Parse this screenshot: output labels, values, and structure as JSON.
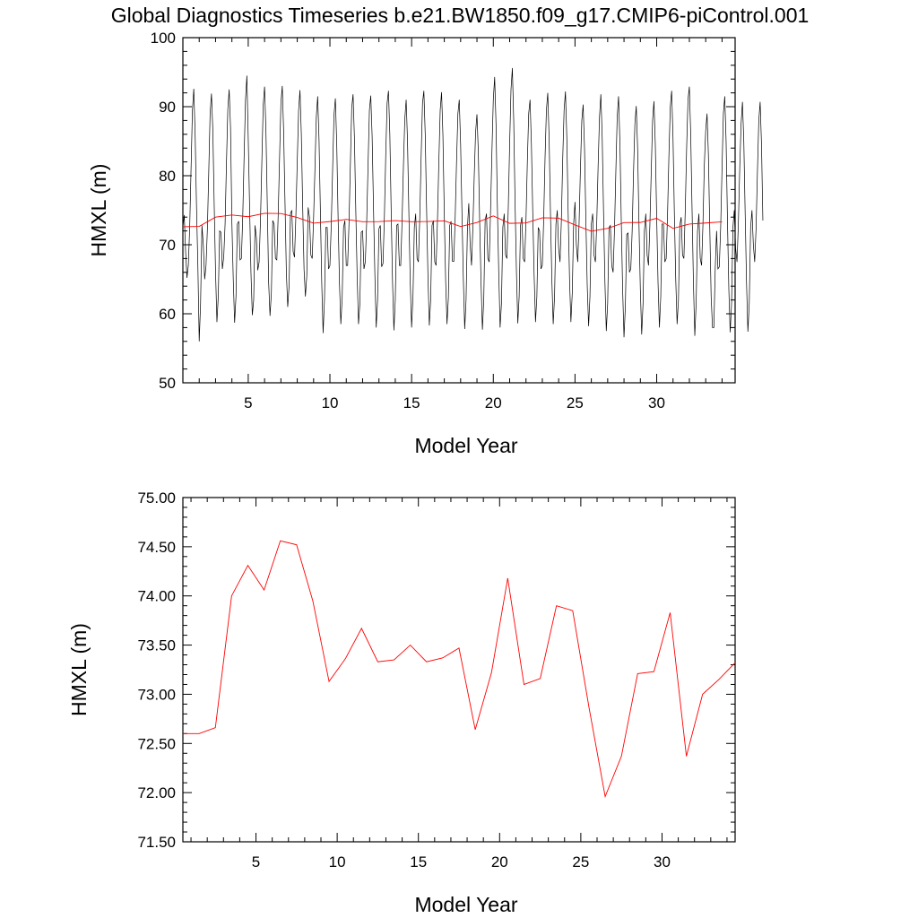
{
  "title": "Global Diagnostics Timeseries b.e21.BW1850.f09_g17.CMIP6-piControl.001",
  "colors": {
    "monthly": "#000000",
    "annual": "#ff0000",
    "axes": "#000000"
  },
  "chart_data": [
    {
      "type": "line",
      "xlabel": "Model Year",
      "ylabel": "HMXL (m)",
      "xlim": [
        1,
        34.8
      ],
      "ylim": [
        50,
        100
      ],
      "x_ticks": [
        5,
        10,
        15,
        20,
        25,
        30
      ],
      "x_tick_labels": [
        "5",
        "10",
        "15",
        "20",
        "25",
        "30"
      ],
      "y_ticks": [
        50,
        60,
        70,
        80,
        90,
        100
      ],
      "y_tick_labels": [
        "50",
        "60",
        "70",
        "80",
        "90",
        "100"
      ],
      "series": [
        {
          "role": "monthly",
          "color": "#000000",
          "x_start": 1.0,
          "x_step": 0.08333,
          "values": [
            72.6,
            74.3,
            69.0,
            65.2,
            67.0,
            72.4,
            81.0,
            89.4,
            92.6,
            86.0,
            75.6,
            67.0,
            56.0,
            61.5,
            72.8,
            70.0,
            65.0,
            67.0,
            72.3,
            80.5,
            89.0,
            91.9,
            86.6,
            75.8,
            66.0,
            58.8,
            62.5,
            72.0,
            71.8,
            66.5,
            68.2,
            73.0,
            81.8,
            89.6,
            92.5,
            87.0,
            73.2,
            65.0,
            58.7,
            62.5,
            73.0,
            73.4,
            67.8,
            68.0,
            74.3,
            83.0,
            91.0,
            94.5,
            85.4,
            75.5,
            66.0,
            59.8,
            62.0,
            72.8,
            71.0,
            66.3,
            67.5,
            73.5,
            82.0,
            90.2,
            92.9,
            86.5,
            75.8,
            64.5,
            59.7,
            63.0,
            73.5,
            73.0,
            68.0,
            67.8,
            74.3,
            82.5,
            90.5,
            93.0,
            86.5,
            76.2,
            66.0,
            61.0,
            64.0,
            74.5,
            75.0,
            69.0,
            68.2,
            74.2,
            82.0,
            89.5,
            92.4,
            86.0,
            75.5,
            66.4,
            62.5,
            65.5,
            75.4,
            74.0,
            68.5,
            68.0,
            73.8,
            81.0,
            88.5,
            91.5,
            85.2,
            74.8,
            64.3,
            57.2,
            62.0,
            72.5,
            72.5,
            66.5,
            67.0,
            73.0,
            81.0,
            88.8,
            91.2,
            84.7,
            74.0,
            64.5,
            58.5,
            62.3,
            72.5,
            73.5,
            67.0,
            67.0,
            73.0,
            81.5,
            89.8,
            91.8,
            85.5,
            75.0,
            65.5,
            58.5,
            61.5,
            71.8,
            72.0,
            66.5,
            67.5,
            73.3,
            81.5,
            89.5,
            91.6,
            85.7,
            75.4,
            65.8,
            58.0,
            62.0,
            72.3,
            72.8,
            66.8,
            67.3,
            74.0,
            83.0,
            90.5,
            92.3,
            86.0,
            74.8,
            64.5,
            57.6,
            62.0,
            72.8,
            73.0,
            67.0,
            67.0,
            73.5,
            81.5,
            88.2,
            91.0,
            85.0,
            74.5,
            64.5,
            58.0,
            62.5,
            72.5,
            74.5,
            68.0,
            67.5,
            74.0,
            82.8,
            90.5,
            92.3,
            86.0,
            75.2,
            65.5,
            58.3,
            62.0,
            72.8,
            73.5,
            67.5,
            67.0,
            73.5,
            82.0,
            89.5,
            92.1,
            85.8,
            74.5,
            64.8,
            58.5,
            62.3,
            72.8,
            73.4,
            67.6,
            67.6,
            74.0,
            82.0,
            89.0,
            91.0,
            84.5,
            74.5,
            65.0,
            57.8,
            62.0,
            72.5,
            76.0,
            70.0,
            67.0,
            72.5,
            80.0,
            86.3,
            88.9,
            83.5,
            73.2,
            64.5,
            57.7,
            62.0,
            73.5,
            74.5,
            68.0,
            67.5,
            75.0,
            83.5,
            91.0,
            94.3,
            87.5,
            75.5,
            66.0,
            58.0,
            61.5,
            72.5,
            74.5,
            68.5,
            68.0,
            75.3,
            84.5,
            92.5,
            95.6,
            88.0,
            76.0,
            66.0,
            58.6,
            62.5,
            72.8,
            74.0,
            68.0,
            67.5,
            73.5,
            82.0,
            89.0,
            91.0,
            84.5,
            74.5,
            65.5,
            58.8,
            62.5,
            72.5,
            72.0,
            66.5,
            67.0,
            73.5,
            82.5,
            89.5,
            92.0,
            85.5,
            74.5,
            65.0,
            58.5,
            62.5,
            73.0,
            75.0,
            69.5,
            67.5,
            73.5,
            82.5,
            89.5,
            92.2,
            85.5,
            74.5,
            65.0,
            58.8,
            63.0,
            73.0,
            76.2,
            70.0,
            67.5,
            73.0,
            81.0,
            88.0,
            90.3,
            84.0,
            73.5,
            64.0,
            58.2,
            62.5,
            73.0,
            74.5,
            68.5,
            67.5,
            73.3,
            81.5,
            88.5,
            91.8,
            85.5,
            74.5,
            64.5,
            57.5,
            61.5,
            72.5,
            72.8,
            67.0,
            66.0,
            72.0,
            80.5,
            88.5,
            91.5,
            84.8,
            73.5,
            63.5,
            56.6,
            61.0,
            71.5,
            71.7,
            66.0,
            66.5,
            72.0,
            80.5,
            87.5,
            90.1,
            84.0,
            73.0,
            63.5,
            57.0,
            61.5,
            72.0,
            74.5,
            68.5,
            67.0,
            72.8,
            80.5,
            88.0,
            90.8,
            84.5,
            74.0,
            64.5,
            58.0,
            62.5,
            73.0,
            73.0,
            67.5,
            68.0,
            74.5,
            83.0,
            90.0,
            92.3,
            85.5,
            74.5,
            65.0,
            58.5,
            62.0,
            72.8,
            74.0,
            68.5,
            68.0,
            75.0,
            84.0,
            91.0,
            92.9,
            86.0,
            75.0,
            64.5,
            56.8,
            61.5,
            72.0,
            74.5,
            68.0,
            67.0,
            73.0,
            81.5,
            86.5,
            89.0,
            83.0,
            72.5,
            62.5,
            58.0,
            58.0,
            66.5,
            72.0,
            66.5,
            66.8,
            72.5,
            81.0,
            89.0,
            91.5,
            85.0,
            73.5,
            63.5,
            57.3,
            61.5,
            72.5,
            75.0,
            69.5,
            67.5,
            73.0,
            81.0,
            87.5,
            90.7,
            85.0,
            74.5,
            64.5,
            57.4,
            61.5,
            72.5,
            75.0,
            70.0,
            67.5,
            72.3,
            80.5,
            88.0,
            90.7,
            84.5,
            73.5
          ]
        },
        {
          "role": "annual",
          "color": "#ff0000",
          "x": [
            1,
            2,
            3,
            4,
            5,
            6,
            7,
            8,
            9,
            10,
            11,
            12,
            13,
            14,
            15,
            16,
            17,
            18,
            19,
            20,
            21,
            22,
            23,
            24,
            25,
            26,
            27,
            28,
            29,
            30,
            31,
            32,
            33,
            34
          ],
          "values": [
            72.6,
            72.66,
            74.0,
            74.31,
            74.06,
            74.56,
            74.52,
            73.95,
            73.13,
            73.36,
            73.67,
            73.33,
            73.35,
            73.5,
            73.33,
            73.37,
            73.47,
            72.64,
            73.22,
            74.18,
            73.1,
            73.16,
            73.9,
            73.85,
            72.87,
            71.96,
            72.37,
            73.21,
            73.23,
            73.83,
            72.37,
            73.0,
            73.15,
            73.32
          ]
        }
      ]
    },
    {
      "type": "line",
      "xlabel": "Model Year",
      "ylabel": "HMXL (m)",
      "xlim": [
        0.5,
        34.5
      ],
      "ylim": [
        71.5,
        75.0
      ],
      "x_ticks": [
        5,
        10,
        15,
        20,
        25,
        30
      ],
      "x_tick_labels": [
        "5",
        "10",
        "15",
        "20",
        "25",
        "30"
      ],
      "y_ticks": [
        71.5,
        72.0,
        72.5,
        73.0,
        73.5,
        74.0,
        74.5,
        75.0
      ],
      "y_tick_labels": [
        "71.50",
        "72.00",
        "72.50",
        "73.00",
        "73.50",
        "74.00",
        "74.50",
        "75.00"
      ],
      "series": [
        {
          "role": "annual",
          "color": "#ff0000",
          "x": [
            0.5,
            1.5,
            2.5,
            3.5,
            4.5,
            5.5,
            6.5,
            7.5,
            8.5,
            9.5,
            10.5,
            11.5,
            12.5,
            13.5,
            14.5,
            15.5,
            16.5,
            17.5,
            18.5,
            19.5,
            20.5,
            21.5,
            22.5,
            23.5,
            24.5,
            25.5,
            26.5,
            27.5,
            28.5,
            29.5,
            30.5,
            31.5,
            32.5,
            33.5,
            34.5
          ],
          "values": [
            72.6,
            72.6,
            72.66,
            74.0,
            74.31,
            74.06,
            74.56,
            74.52,
            73.95,
            73.13,
            73.36,
            73.67,
            73.33,
            73.35,
            73.5,
            73.33,
            73.37,
            73.47,
            72.64,
            73.22,
            74.18,
            73.1,
            73.16,
            73.9,
            73.85,
            72.87,
            71.96,
            72.37,
            73.21,
            73.23,
            73.83,
            72.37,
            73.0,
            73.15,
            73.32
          ]
        }
      ]
    }
  ]
}
